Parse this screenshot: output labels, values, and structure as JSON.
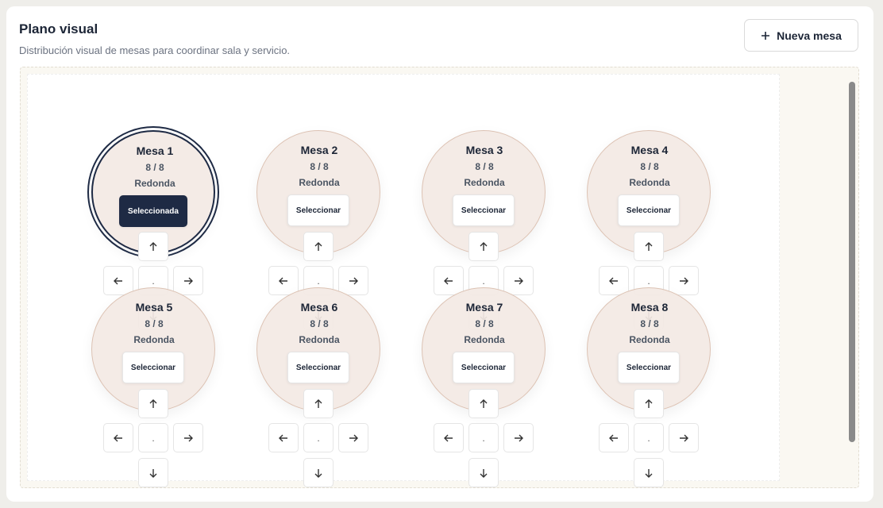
{
  "header": {
    "title": "Plano visual",
    "subtitle": "Distribución visual de mesas para coordinar sala y servicio.",
    "button": "Nueva mesa"
  },
  "controls": {
    "center": "."
  },
  "tables": [
    {
      "name": "Mesa 1",
      "seats": "8 / 8",
      "shape": "Redonda",
      "action": "Seleccionada",
      "selected": true
    },
    {
      "name": "Mesa 2",
      "seats": "8 / 8",
      "shape": "Redonda",
      "action": "Seleccionar",
      "selected": false
    },
    {
      "name": "Mesa 3",
      "seats": "8 / 8",
      "shape": "Redonda",
      "action": "Seleccionar",
      "selected": false
    },
    {
      "name": "Mesa 4",
      "seats": "8 / 8",
      "shape": "Redonda",
      "action": "Seleccionar",
      "selected": false
    },
    {
      "name": "Mesa 5",
      "seats": "8 / 8",
      "shape": "Redonda",
      "action": "Seleccionar",
      "selected": false
    },
    {
      "name": "Mesa 6",
      "seats": "8 / 8",
      "shape": "Redonda",
      "action": "Seleccionar",
      "selected": false
    },
    {
      "name": "Mesa 7",
      "seats": "8 / 8",
      "shape": "Redonda",
      "action": "Seleccionar",
      "selected": false
    },
    {
      "name": "Mesa 8",
      "seats": "8 / 8",
      "shape": "Redonda",
      "action": "Seleccionar",
      "selected": false
    }
  ]
}
